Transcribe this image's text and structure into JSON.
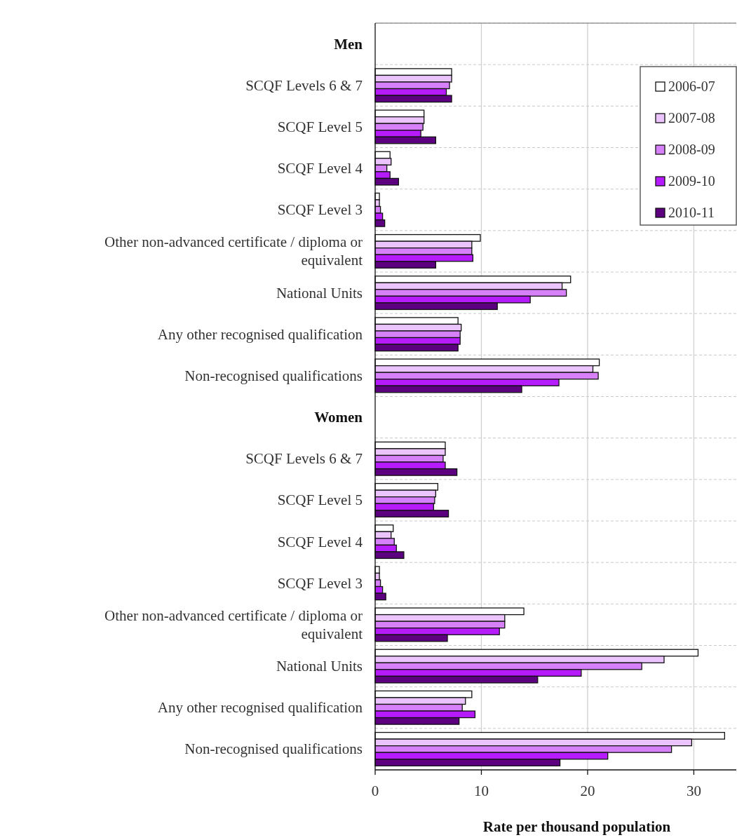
{
  "chart_data": {
    "type": "bar",
    "orientation": "horizontal",
    "xlabel": "Rate per thousand population",
    "categories": [
      "Men",
      "SCQF Levels 6 & 7",
      "SCQF Level 5",
      "SCQF Level 4",
      "SCQF Level 3",
      "Other non-advanced certificate / diploma or equivalent",
      "National Units",
      "Any other recognised qualification",
      "Non-recognised qualifications",
      "Women",
      "SCQF Levels 6 & 7",
      "SCQF Level 5",
      "SCQF Level 4",
      "SCQF Level 3",
      "Other non-advanced certificate / diploma or equivalent",
      "National Units",
      "Any other recognised qualification",
      "Non-recognised qualifications"
    ],
    "series": [
      {
        "name": "2006-07",
        "color": "#ffffff",
        "values": [
          null,
          7.2,
          4.6,
          1.4,
          0.4,
          9.9,
          18.4,
          7.8,
          21.1,
          null,
          6.6,
          5.9,
          1.7,
          0.4,
          14.0,
          30.4,
          9.1,
          32.9
        ]
      },
      {
        "name": "2007-08",
        "color": "#ebc4fd",
        "values": [
          null,
          7.2,
          4.6,
          1.5,
          0.4,
          9.1,
          17.6,
          8.1,
          20.5,
          null,
          6.6,
          5.7,
          1.5,
          0.4,
          12.2,
          27.2,
          8.5,
          29.8
        ]
      },
      {
        "name": "2008-09",
        "color": "#d680fa",
        "values": [
          null,
          7.0,
          4.5,
          1.1,
          0.5,
          9.1,
          18.0,
          8.0,
          21.0,
          null,
          6.4,
          5.6,
          1.8,
          0.5,
          12.2,
          25.1,
          8.2,
          27.9
        ]
      },
      {
        "name": "2009-10",
        "color": "#b61cfb",
        "values": [
          null,
          6.7,
          4.3,
          1.4,
          0.7,
          9.2,
          14.6,
          8.0,
          17.3,
          null,
          6.6,
          5.5,
          2.0,
          0.7,
          11.7,
          19.4,
          9.4,
          21.9
        ]
      },
      {
        "name": "2010-11",
        "color": "#5c0080",
        "values": [
          null,
          7.2,
          5.7,
          2.2,
          0.9,
          5.7,
          11.5,
          7.8,
          13.8,
          null,
          7.7,
          6.9,
          2.7,
          1.0,
          6.8,
          15.3,
          7.9,
          17.4
        ]
      }
    ],
    "xlim": [
      0,
      34
    ],
    "xticks": [
      0,
      10,
      20,
      30
    ],
    "grid": true,
    "legend": "top right"
  }
}
